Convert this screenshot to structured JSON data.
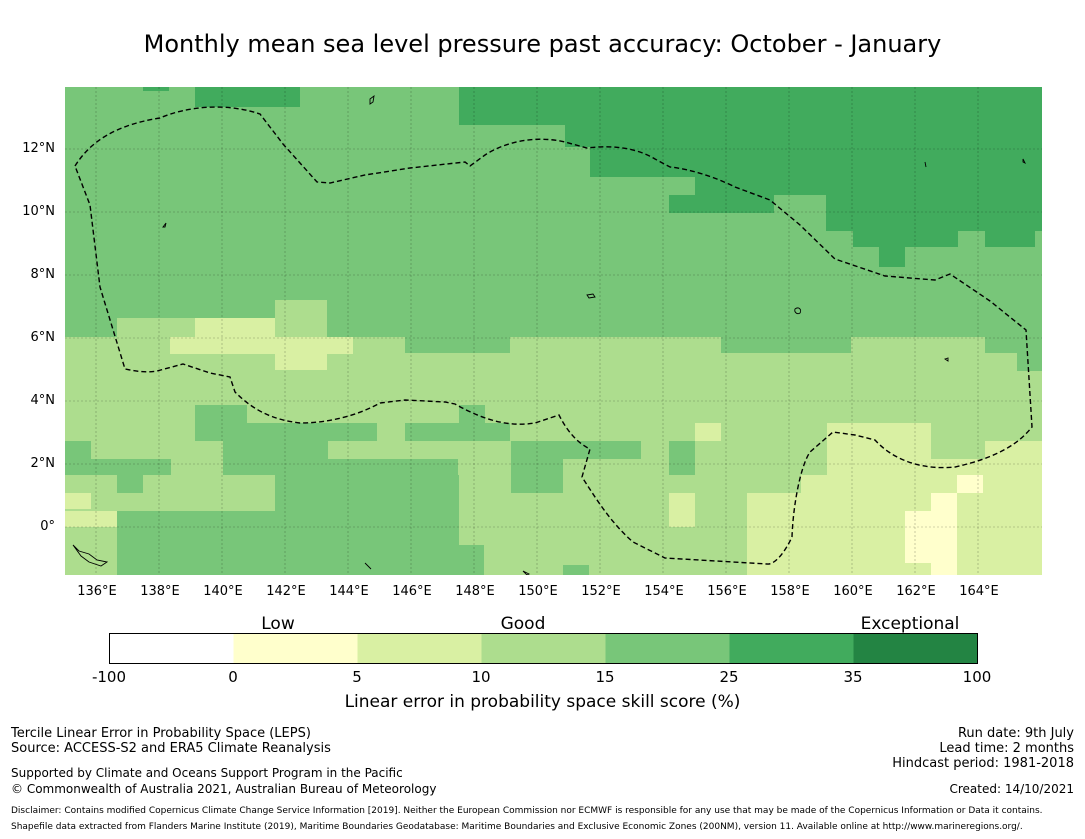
{
  "title": "Monthly mean sea level pressure past accuracy: October - January",
  "map": {
    "lon_ticks": [
      "136°E",
      "138°E",
      "140°E",
      "142°E",
      "144°E",
      "146°E",
      "148°E",
      "150°E",
      "152°E",
      "154°E",
      "156°E",
      "158°E",
      "160°E",
      "162°E",
      "164°E"
    ],
    "lat_ticks": [
      "12°N",
      "10°N",
      "8°N",
      "6°N",
      "4°N",
      "2°N",
      "0°"
    ],
    "lon_range": [
      135,
      166
    ],
    "lat_range": [
      -1.5,
      14
    ],
    "gridlines": true,
    "boundary_style": "dashed",
    "colors": {
      "bin_0_5": "#ffffcc",
      "bin_5_10": "#d9f0a3",
      "bin_10_15": "#addd8e",
      "bin_15_25": "#78c679",
      "bin_25_35": "#41ab5d",
      "bin_35_100": "#238443"
    }
  },
  "colorbar": {
    "categories": [
      "Low",
      "Good",
      "Exceptional"
    ],
    "ticks": [
      "-100",
      "0",
      "5",
      "10",
      "15",
      "25",
      "35",
      "100"
    ],
    "colors": [
      "#ffffff",
      "#ffffcc",
      "#d9f0a3",
      "#addd8e",
      "#78c679",
      "#41ab5d",
      "#238443"
    ],
    "label": "Linear error in probability space skill score (%)"
  },
  "footer": {
    "method": "Tercile Linear Error in Probability Space (LEPS)",
    "source": "Source: ACCESS-S2 and ERA5 Climate Reanalysis",
    "supported": "Supported by Climate and Oceans Support Program in the Pacific",
    "copyright": "© Commonwealth of Australia 2021, Australian Bureau of Meteorology",
    "run_date": "Run date: 9th July",
    "lead_time": "Lead time: 2 months",
    "hindcast": "Hindcast period: 1981-2018",
    "created": "Created: 14/10/2021",
    "disclaimer1": "Disclaimer: Contains modified Copernicus Climate Change Service Information [2019]. Neither the European Commission nor ECMWF is responsible for any use that may be made of the Copernicus Information or Data it contains.",
    "disclaimer2": "Shapefile data extracted from Flanders Marine Institute (2019), Maritime Boundaries Geodatabase: Maritime Boundaries and Exclusive Economic Zones (200NM), version 11. Available online at http://www.marineregions.org/."
  }
}
